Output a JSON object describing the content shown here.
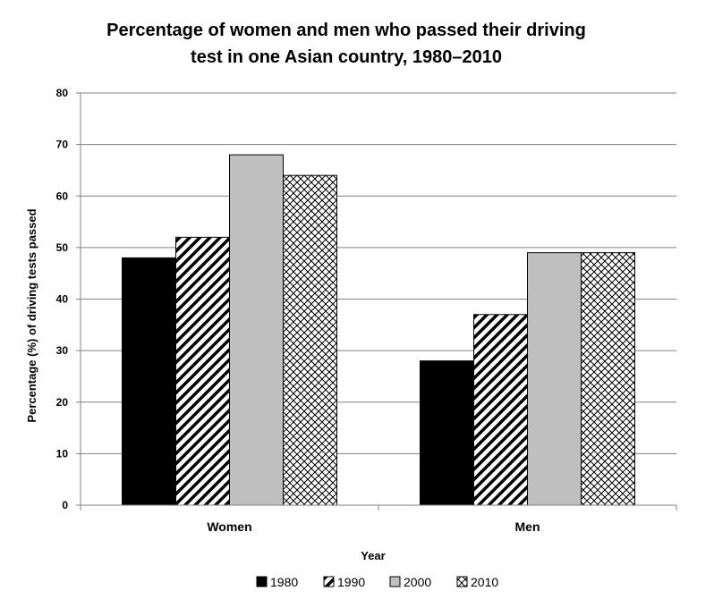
{
  "chart_data": {
    "type": "bar",
    "title_lines": [
      "Percentage of women and men who passed their driving",
      "test in one Asian country, 1980–2010"
    ],
    "xlabel": "Year",
    "ylabel": "Percentage (%) of driving tests passed",
    "categories": [
      "Women",
      "Men"
    ],
    "series": [
      {
        "name": "1980",
        "values": [
          48,
          28
        ],
        "pattern": "solid-black"
      },
      {
        "name": "1990",
        "values": [
          52,
          37
        ],
        "pattern": "diagonal-stripes"
      },
      {
        "name": "2000",
        "values": [
          68,
          49
        ],
        "pattern": "solid-gray"
      },
      {
        "name": "2010",
        "values": [
          64,
          49
        ],
        "pattern": "crosshatch"
      }
    ],
    "ylim": [
      0,
      80
    ],
    "yticks": [
      "0",
      "10",
      "20",
      "30",
      "40",
      "50",
      "60",
      "70",
      "80"
    ],
    "grid": true,
    "legend": "bottom",
    "colors": {
      "solid-black": "#000000",
      "solid-gray": "#bfbfbf",
      "axis": "#808080",
      "grid": "#808080"
    }
  }
}
